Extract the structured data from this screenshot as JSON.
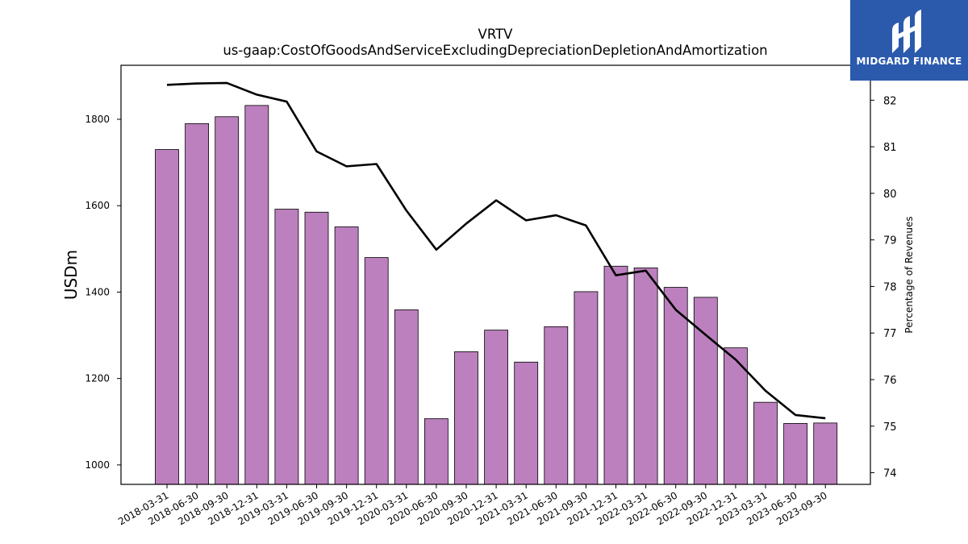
{
  "chart_data": {
    "type": "bar",
    "title": "VRTV",
    "subtitle": "us-gaap:CostOfGoodsAndServiceExcludingDepreciationDepletionAndAmortization",
    "ylabel": "USDm",
    "y2label": "Percentage of Revenues",
    "ylim": [
      955,
      1925
    ],
    "y2lim": [
      73.75,
      82.75
    ],
    "yticks": [
      1000,
      1200,
      1400,
      1600,
      1800
    ],
    "y2ticks": [
      74,
      75,
      76,
      77,
      78,
      79,
      80,
      81,
      82
    ],
    "grid": false,
    "categories": [
      "2018-03-31",
      "2018-06-30",
      "2018-09-30",
      "2018-12-31",
      "2019-03-31",
      "2019-06-30",
      "2019-09-30",
      "2019-12-31",
      "2020-03-31",
      "2020-06-30",
      "2020-09-30",
      "2020-12-31",
      "2021-03-31",
      "2021-06-30",
      "2021-09-30",
      "2021-12-31",
      "2022-03-31",
      "2022-06-30",
      "2022-09-30",
      "2022-12-31",
      "2023-03-31",
      "2023-06-30",
      "2023-09-30"
    ],
    "series": [
      {
        "kind": "bar",
        "axis": "left",
        "color": "#bb80bd",
        "values": [
          1730,
          1790,
          1806,
          1832,
          1592,
          1585,
          1551,
          1480,
          1359,
          1107,
          1262,
          1312,
          1238,
          1320,
          1401,
          1460,
          1456,
          1411,
          1388,
          1271,
          1145,
          1096,
          1097
        ]
      },
      {
        "kind": "line",
        "axis": "right",
        "color": "#000000",
        "values": [
          82.33,
          82.36,
          82.37,
          82.12,
          81.97,
          80.9,
          80.58,
          80.63,
          79.63,
          78.79,
          79.35,
          79.85,
          79.42,
          79.53,
          79.31,
          78.24,
          78.34,
          77.5,
          76.96,
          76.43,
          75.76,
          75.24,
          75.17
        ]
      }
    ]
  },
  "brand": {
    "name": "MIDGARD FINANCE",
    "color": "#2b5aad",
    "icon": "midgard-logo-icon"
  }
}
